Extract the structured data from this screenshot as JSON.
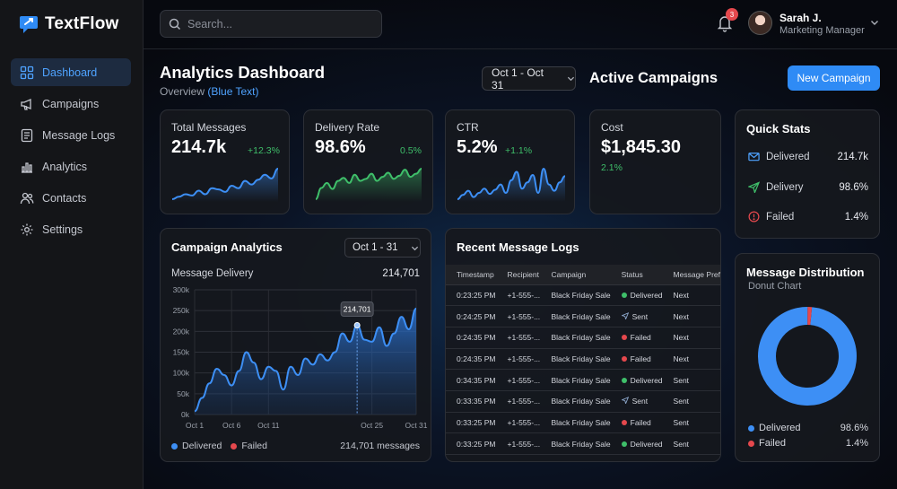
{
  "app": {
    "name": "TextFlow",
    "brand_color": "#2f8bf5"
  },
  "sidebar": {
    "items": [
      {
        "label": "Dashboard",
        "icon": "dashboard-icon",
        "active": true
      },
      {
        "label": "Campaigns",
        "icon": "megaphone-icon",
        "active": false
      },
      {
        "label": "Message Logs",
        "icon": "document-icon",
        "active": false
      },
      {
        "label": "Analytics",
        "icon": "bar-chart-icon",
        "active": false
      },
      {
        "label": "Contacts",
        "icon": "users-icon",
        "active": false
      },
      {
        "label": "Settings",
        "icon": "gear-icon",
        "active": false
      }
    ]
  },
  "topbar": {
    "search_placeholder": "Search...",
    "notifications": {
      "count": "3"
    },
    "user": {
      "name": "Sarah J.",
      "role": "Marketing Manager"
    }
  },
  "header": {
    "title": "Analytics Dashboard",
    "subtitle_prefix": "Overview",
    "subtitle_highlight": "(Blue Text)",
    "date_range": "Oct 1 - Oct 31",
    "campaigns_title": "Active Campaigns",
    "new_campaign_label": "New Campaign"
  },
  "stats": [
    {
      "label": "Total Messages",
      "value": "214.7k",
      "change": "+12.3%",
      "spark_color": "#3d8ff5",
      "spark": [
        5,
        7,
        9,
        8,
        12,
        9,
        14,
        13,
        11,
        16,
        14,
        20,
        17,
        21,
        25,
        22,
        30
      ]
    },
    {
      "label": "Delivery Rate",
      "value": "98.6%",
      "change": "0.5%",
      "spark_color": "#3fbf6a",
      "spark": [
        4,
        15,
        20,
        14,
        22,
        25,
        20,
        28,
        22,
        24,
        29,
        22,
        26,
        30,
        24,
        27,
        33,
        26,
        29,
        34
      ]
    },
    {
      "label": "CTR",
      "value": "5.2%",
      "change": "+1.1%",
      "spark_color": "#3d8ff5",
      "spark": [
        4,
        8,
        12,
        6,
        10,
        14,
        9,
        13,
        18,
        10,
        22,
        30,
        14,
        20,
        27,
        10,
        33,
        18,
        12,
        20,
        26
      ]
    },
    {
      "label": "Cost",
      "value": "$1,845.30",
      "change": "2.1%"
    }
  ],
  "quick_stats": {
    "title": "Quick Stats",
    "rows": [
      {
        "label": "Delivered",
        "value": "214.7k",
        "icon": "mail-icon"
      },
      {
        "label": "Delivery",
        "value": "98.6%",
        "icon": "send-icon"
      },
      {
        "label": "Failed",
        "value": "1.4%",
        "icon": "alert-icon"
      }
    ]
  },
  "campaign_analytics": {
    "title": "Campaign Analytics",
    "range": "Oct 1 - 31",
    "subtitle": "Message Delivery",
    "total": "214,701",
    "tooltip": "214,701",
    "legend_delivered": "Delivered",
    "legend_failed": "Failed",
    "footer_total": "214,701 messages"
  },
  "chart_data": {
    "type": "area",
    "title": "Message Delivery",
    "x_ticks": [
      "Oct 1",
      "Oct 6",
      "Oct 11",
      "Oct 25",
      "Oct 31"
    ],
    "y_ticks": [
      "0k",
      "50k",
      "100k",
      "150k",
      "200k",
      "250k",
      "300k"
    ],
    "ylim": [
      0,
      300000
    ],
    "series": [
      {
        "name": "Delivered",
        "color": "#3d8ff5",
        "values": [
          8000,
          40000,
          75000,
          110000,
          95000,
          70000,
          105000,
          150000,
          125000,
          85000,
          115000,
          105000,
          60000,
          115000,
          95000,
          135000,
          120000,
          145000,
          130000,
          150000,
          195000,
          175000,
          214701,
          180000,
          175000,
          210000,
          165000,
          195000,
          235000,
          205000,
          255000
        ]
      },
      {
        "name": "Failed",
        "color": "#e5484d",
        "values": []
      }
    ]
  },
  "message_logs": {
    "title": "Recent Message Logs",
    "columns": [
      "Timestamp",
      "Recipient",
      "Campaign",
      "Status",
      "Message Pref"
    ],
    "rows": [
      {
        "time": "0:23:25 PM",
        "recipient": "+1-555-...",
        "campaign": "Black Friday Sale",
        "status": "Delivered",
        "status_type": "delivered",
        "pref": "Next"
      },
      {
        "time": "0:24:25 PM",
        "recipient": "+1-555-...",
        "campaign": "Black Friday Sale",
        "status": "Sent",
        "status_type": "sent",
        "pref": "Next"
      },
      {
        "time": "0:24:35 PM",
        "recipient": "+1-555-...",
        "campaign": "Black Friday Sale",
        "status": "Failed",
        "status_type": "failed",
        "pref": "Next"
      },
      {
        "time": "0:24:35 PM",
        "recipient": "+1-555-...",
        "campaign": "Black Friday Sale",
        "status": "Failed",
        "status_type": "failed",
        "pref": "Next"
      },
      {
        "time": "0:34:35 PM",
        "recipient": "+1-555-...",
        "campaign": "Black Friday Sale",
        "status": "Delivered",
        "status_type": "delivered",
        "pref": "Sent"
      },
      {
        "time": "0:33:35 PM",
        "recipient": "+1-555-...",
        "campaign": "Black Friday Sale",
        "status": "Sent",
        "status_type": "sent",
        "pref": "Sent"
      },
      {
        "time": "0:33:25 PM",
        "recipient": "+1-555-...",
        "campaign": "Black Friday Sale",
        "status": "Failed",
        "status_type": "failed",
        "pref": "Sent"
      },
      {
        "time": "0:33:25 PM",
        "recipient": "+1-555-...",
        "campaign": "Black Friday Sale",
        "status": "Delivered",
        "status_type": "delivered",
        "pref": "Sent"
      }
    ]
  },
  "distribution": {
    "title": "Message Distribution",
    "subtitle": "Donut Chart",
    "slices": [
      {
        "label": "Delivered",
        "value": "98.6%",
        "fraction": 0.986,
        "color": "#3d8ff5"
      },
      {
        "label": "Failed",
        "value": "1.4%",
        "fraction": 0.014,
        "color": "#e5484d"
      }
    ]
  },
  "colors": {
    "delivered": "#3fbf6a",
    "sent": "#8aa4c8",
    "failed": "#e5484d",
    "accent": "#2f8bf5"
  }
}
